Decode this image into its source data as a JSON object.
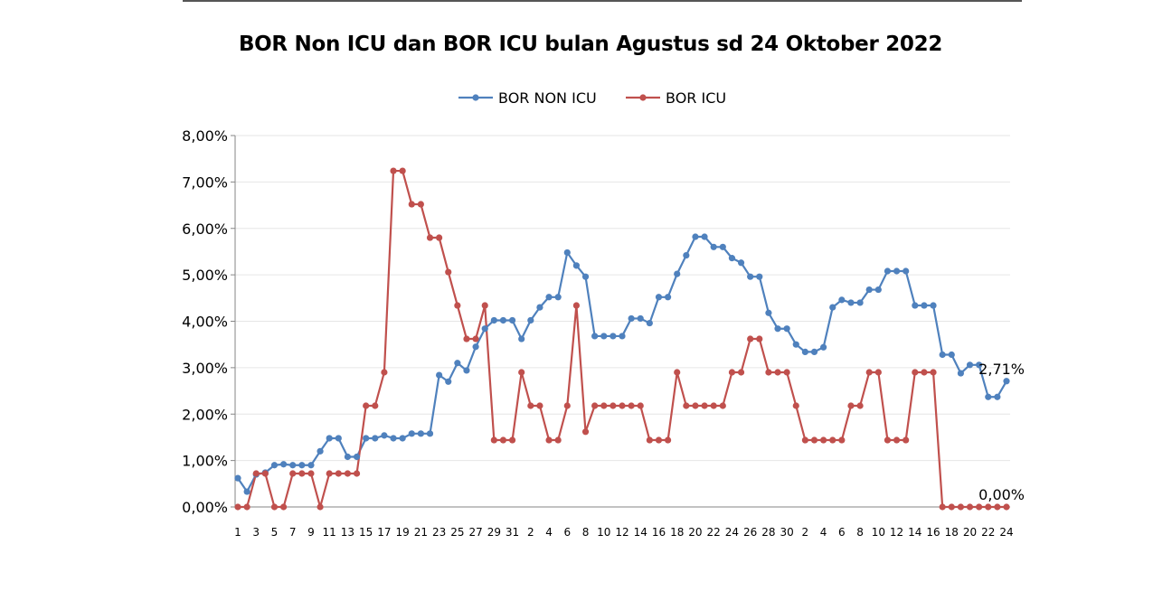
{
  "chart_data": {
    "type": "line",
    "title": "BOR Non ICU dan BOR ICU bulan Agustus sd 24 Oktober 2022",
    "xlabel": "",
    "ylabel": "",
    "ylim": [
      0,
      8
    ],
    "y_ticks": [
      "0,00%",
      "1,00%",
      "2,00%",
      "3,00%",
      "4,00%",
      "5,00%",
      "6,00%",
      "7,00%",
      "8,00%"
    ],
    "grid": true,
    "legend": "top",
    "x": [
      1,
      2,
      3,
      4,
      5,
      6,
      7,
      8,
      9,
      10,
      11,
      12,
      13,
      14,
      15,
      16,
      17,
      18,
      19,
      20,
      21,
      22,
      23,
      24,
      25,
      26,
      27,
      28,
      29,
      30,
      31,
      1,
      2,
      3,
      4,
      5,
      6,
      7,
      8,
      9,
      10,
      11,
      12,
      13,
      14,
      15,
      16,
      17,
      18,
      19,
      20,
      21,
      22,
      23,
      24,
      25,
      26,
      27,
      28,
      29,
      30,
      1,
      2,
      3,
      4,
      5,
      6,
      7,
      8,
      9,
      10,
      11,
      12,
      13,
      14,
      15,
      16,
      17,
      18,
      19,
      20,
      21,
      22,
      23,
      24
    ],
    "x_tick_labels": [
      "1",
      "3",
      "5",
      "7",
      "9",
      "11",
      "13",
      "15",
      "17",
      "19",
      "21",
      "23",
      "25",
      "27",
      "29",
      "31",
      "2",
      "4",
      "6",
      "8",
      "10",
      "12",
      "14",
      "16",
      "18",
      "20",
      "22",
      "24",
      "26",
      "28",
      "30",
      "2",
      "4",
      "6",
      "8",
      "10",
      "12",
      "14",
      "16",
      "18",
      "20",
      "22",
      "24"
    ],
    "series": [
      {
        "name": "BOR NON ICU",
        "color": "#4f81bd",
        "values": [
          0.62,
          0.33,
          0.7,
          0.74,
          0.9,
          0.92,
          0.9,
          0.9,
          0.9,
          1.2,
          1.48,
          1.48,
          1.08,
          1.08,
          1.48,
          1.48,
          1.54,
          1.48,
          1.48,
          1.58,
          1.58,
          1.58,
          2.84,
          2.7,
          3.1,
          2.94,
          3.45,
          3.84,
          4.02,
          4.02,
          4.02,
          3.62,
          4.02,
          4.3,
          4.52,
          4.52,
          5.48,
          5.2,
          4.96,
          3.68,
          3.68,
          3.68,
          3.68,
          4.06,
          4.06,
          3.96,
          4.52,
          4.52,
          5.02,
          5.42,
          5.82,
          5.82,
          5.6,
          5.6,
          5.36,
          5.26,
          4.96,
          4.96,
          4.18,
          3.84,
          3.84,
          3.5,
          3.34,
          3.34,
          3.44,
          4.3,
          4.46,
          4.4,
          4.4,
          4.68,
          4.68,
          5.08,
          5.08,
          5.08,
          4.34,
          4.34,
          4.34,
          3.28,
          3.28,
          2.88,
          3.06,
          3.06,
          2.37,
          2.37,
          2.71
        ],
        "end_label": "2,71%"
      },
      {
        "name": "BOR ICU",
        "color": "#c0504d",
        "values": [
          0,
          0,
          0.72,
          0.72,
          0,
          0,
          0.72,
          0.72,
          0.72,
          0,
          0.72,
          0.72,
          0.72,
          0.72,
          2.18,
          2.18,
          2.9,
          7.24,
          7.24,
          6.52,
          6.52,
          5.8,
          5.8,
          5.06,
          4.34,
          3.62,
          3.62,
          4.34,
          1.44,
          1.44,
          1.44,
          2.9,
          2.18,
          2.18,
          1.44,
          1.44,
          2.18,
          4.34,
          1.62,
          2.18,
          2.18,
          2.18,
          2.18,
          2.18,
          2.18,
          1.44,
          1.44,
          1.44,
          2.9,
          2.18,
          2.18,
          2.18,
          2.18,
          2.18,
          2.9,
          2.9,
          3.62,
          3.62,
          2.9,
          2.9,
          2.9,
          2.18,
          1.44,
          1.44,
          1.44,
          1.44,
          1.44,
          2.18,
          2.18,
          2.9,
          2.9,
          1.44,
          1.44,
          1.44,
          2.9,
          2.9,
          2.9,
          0,
          0,
          0,
          0,
          0,
          0,
          0,
          0
        ],
        "end_label": "0,00%"
      }
    ]
  }
}
